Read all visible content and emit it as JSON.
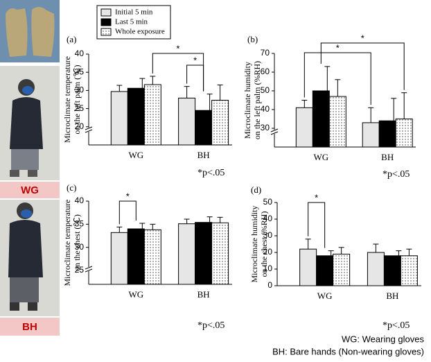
{
  "legend": [
    {
      "name": "Initial 5 min",
      "color": "#e6e6e6"
    },
    {
      "name": "Last 5 min",
      "color": "#000000"
    },
    {
      "name": "Whole exposure",
      "color": "#ffffff",
      "pattern": "dots"
    }
  ],
  "photo_labels": [
    "WG",
    "BH"
  ],
  "footnotes": [
    "WG: Wearing gloves",
    "BH: Bare hands (Non-wearing gloves)"
  ],
  "chart_data": [
    {
      "type": "bar",
      "panel": "(a)",
      "ylabel": [
        "Microclimate temperature",
        "on the left palm (℃)"
      ],
      "categories": [
        "WG",
        "BH"
      ],
      "series": [
        {
          "values": [
            29.7,
            27.9
          ],
          "errors": [
            1.7,
            3.2
          ]
        },
        {
          "values": [
            30.6,
            24.5
          ],
          "errors": [
            2.7,
            4.5
          ]
        },
        {
          "values": [
            31.6,
            27.3
          ],
          "errors": [
            2.3,
            4.2
          ]
        }
      ],
      "ylim": [
        15,
        40
      ],
      "yticks": [
        20,
        25,
        30,
        35,
        40
      ],
      "annotations": [
        "*",
        "*"
      ],
      "note": "*p<.05"
    },
    {
      "type": "bar",
      "panel": "(b)",
      "ylabel": [
        "Microclimate humidity",
        "on the left palm (%RH)"
      ],
      "categories": [
        "WG",
        "BH"
      ],
      "series": [
        {
          "values": [
            41,
            33
          ],
          "errors": [
            4,
            8
          ]
        },
        {
          "values": [
            50,
            34
          ],
          "errors": [
            13,
            12
          ]
        },
        {
          "values": [
            47,
            35
          ],
          "errors": [
            9,
            14
          ]
        }
      ],
      "ylim": [
        20,
        70
      ],
      "yticks": [
        30,
        40,
        50,
        60,
        70
      ],
      "annotations": [
        "*",
        "*"
      ],
      "note": "*p<.05"
    },
    {
      "type": "bar",
      "panel": "(c)",
      "ylabel": [
        "Microclimate temperature",
        "on the chest (℃)"
      ],
      "categories": [
        "WG",
        "BH"
      ],
      "series": [
        {
          "values": [
            33.2,
            35.1
          ],
          "errors": [
            1.2,
            1
          ]
        },
        {
          "values": [
            34,
            35.4
          ],
          "errors": [
            1.2,
            1.2
          ]
        },
        {
          "values": [
            33.8,
            35.3
          ],
          "errors": [
            1.2,
            1.2
          ]
        }
      ],
      "ylim": [
        22,
        40
      ],
      "yticks": [
        25,
        30,
        35,
        40
      ],
      "annotations": [
        "*"
      ],
      "note": "*p<.05"
    },
    {
      "type": "bar",
      "panel": "(d)",
      "ylabel": [
        "Microclimate humidity",
        "on the chest (%RH)"
      ],
      "categories": [
        "WG",
        "BH"
      ],
      "series": [
        {
          "values": [
            22,
            20
          ],
          "errors": [
            6,
            5
          ]
        },
        {
          "values": [
            18,
            18
          ],
          "errors": [
            3,
            3
          ]
        },
        {
          "values": [
            19,
            18
          ],
          "errors": [
            4,
            4
          ]
        }
      ],
      "ylim": [
        0,
        50
      ],
      "yticks": [
        0,
        10,
        20,
        30,
        40,
        50
      ],
      "annotations": [
        "*"
      ],
      "note": "*p<.05"
    }
  ]
}
